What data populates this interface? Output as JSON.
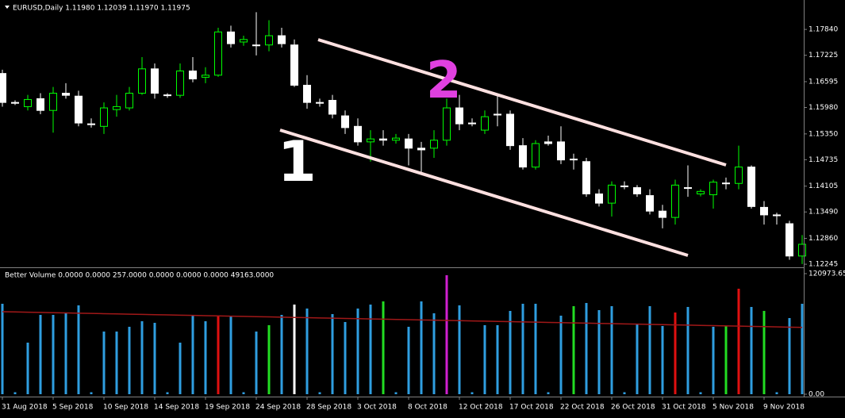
{
  "chart_data": [
    {
      "type": "candlestick",
      "title": "EURUSD,Daily  1.11980 1.12039 1.11970 1.11975",
      "categories": [
        "31 Aug 2018",
        null,
        null,
        null,
        "5 Sep 2018",
        null,
        null,
        null,
        "10 Sep 2018",
        null,
        null,
        null,
        "14 Sep 2018",
        null,
        null,
        null,
        "19 Sep 2018",
        null,
        null,
        null,
        "24 Sep 2018",
        null,
        null,
        null,
        "28 Sep 2018",
        null,
        null,
        null,
        "3 Oct 2018",
        null,
        null,
        null,
        "8 Oct 2018",
        null,
        null,
        null,
        "12 Oct 2018",
        null,
        null,
        null,
        "17 Oct 2018",
        null,
        null,
        null,
        "22 Oct 2018",
        null,
        null,
        null,
        "26 Oct 2018",
        null,
        null,
        null,
        "31 Oct 2018",
        null,
        null,
        null,
        "5 Nov 2018",
        null,
        null,
        null,
        "9 Nov 2018",
        null,
        null,
        null
      ],
      "open": [
        1.1679,
        1.161,
        1.16,
        1.1619,
        1.1591,
        1.1632,
        1.1625,
        1.1559,
        1.1553,
        1.1593,
        1.1597,
        1.1632,
        1.169,
        1.1628,
        1.1627,
        1.1685,
        1.167,
        1.1675,
        1.1778,
        1.1754,
        1.1747,
        1.1747,
        1.1769,
        1.1747,
        1.1651,
        1.161,
        1.1615,
        1.1578,
        1.1553,
        1.1516,
        1.1523,
        1.152,
        1.1523,
        1.1501,
        1.1501,
        1.152,
        1.1597,
        1.1561,
        1.1544,
        1.1582,
        1.1582,
        1.1507,
        1.1456,
        1.1516,
        1.1516,
        1.1475,
        1.1469,
        1.1392,
        1.137,
        1.1411,
        1.1407,
        1.1388,
        1.1351,
        1.1336,
        1.1407,
        1.1392,
        1.139,
        1.1418,
        1.1417,
        1.1456,
        1.136,
        1.1342,
        1.1321,
        1.1244
      ],
      "high": [
        1.1688,
        1.1615,
        1.1628,
        1.1632,
        1.1647,
        1.1656,
        1.1638,
        1.1572,
        1.161,
        1.1628,
        1.1647,
        1.1718,
        1.1703,
        1.1632,
        1.1703,
        1.1718,
        1.1694,
        1.1788,
        1.1793,
        1.1769,
        1.1825,
        1.1806,
        1.1788,
        1.176,
        1.1675,
        1.1619,
        1.1628,
        1.1591,
        1.1572,
        1.1544,
        1.1544,
        1.1535,
        1.1535,
        1.1516,
        1.1544,
        1.1619,
        1.1628,
        1.1572,
        1.1591,
        1.1628,
        1.1591,
        1.1525,
        1.152,
        1.1531,
        1.1553,
        1.1488,
        1.1478,
        1.1403,
        1.1422,
        1.1422,
        1.1413,
        1.1403,
        1.1366,
        1.1426,
        1.146,
        1.1403,
        1.1426,
        1.1431,
        1.1507,
        1.146,
        1.1375,
        1.1347,
        1.1328,
        1.1294
      ],
      "low": [
        1.16,
        1.1604,
        1.1591,
        1.1582,
        1.1538,
        1.1619,
        1.1553,
        1.155,
        1.1535,
        1.1576,
        1.1591,
        1.1628,
        1.1619,
        1.1621,
        1.1621,
        1.1658,
        1.1656,
        1.1671,
        1.1741,
        1.1745,
        1.1722,
        1.1732,
        1.1741,
        1.1647,
        1.1595,
        1.16,
        1.1572,
        1.1535,
        1.1507,
        1.1469,
        1.1507,
        1.1512,
        1.146,
        1.1441,
        1.1478,
        1.1507,
        1.1544,
        1.1553,
        1.1535,
        1.1553,
        1.1497,
        1.145,
        1.145,
        1.1507,
        1.1463,
        1.145,
        1.1385,
        1.1362,
        1.1338,
        1.1403,
        1.1385,
        1.1343,
        1.131,
        1.1319,
        1.1385,
        1.1386,
        1.1357,
        1.1403,
        1.1403,
        1.1357,
        1.1319,
        1.1319,
        1.1235,
        1.1225
      ],
      "close": [
        1.161,
        1.1608,
        1.1617,
        1.1591,
        1.1632,
        1.1627,
        1.1561,
        1.1557,
        1.1597,
        1.16,
        1.1632,
        1.169,
        1.1632,
        1.1627,
        1.1685,
        1.1666,
        1.1675,
        1.1778,
        1.175,
        1.176,
        1.1745,
        1.1769,
        1.175,
        1.1651,
        1.161,
        1.1608,
        1.1582,
        1.155,
        1.1516,
        1.1523,
        1.152,
        1.1525,
        1.1501,
        1.1497,
        1.152,
        1.1597,
        1.1559,
        1.1559,
        1.1576,
        1.158,
        1.1507,
        1.1456,
        1.1512,
        1.1512,
        1.1473,
        1.1473,
        1.1392,
        1.137,
        1.1413,
        1.1409,
        1.1392,
        1.1351,
        1.1336,
        1.1413,
        1.1405,
        1.1398,
        1.142,
        1.1417,
        1.1456,
        1.1362,
        1.1342,
        1.134,
        1.1244,
        1.1272
      ],
      "bull_color": "#00ff00",
      "bear_color": "#ffffff",
      "ylim": [
        1.1219,
        1.1839
      ],
      "yticks": [
        {
          "value": 1.1784,
          "label": "1.17840"
        },
        {
          "value": 1.17225,
          "label": "1.17225"
        },
        {
          "value": 1.16595,
          "label": "1.16595"
        },
        {
          "value": 1.1598,
          "label": "1.15980"
        },
        {
          "value": 1.1535,
          "label": "1.15350"
        },
        {
          "value": 1.14735,
          "label": "1.14735"
        },
        {
          "value": 1.14105,
          "label": "1.14105"
        },
        {
          "value": 1.1349,
          "label": "1.13490"
        },
        {
          "value": 1.1286,
          "label": "1.12860"
        },
        {
          "value": 1.12245,
          "label": "1.12245"
        }
      ],
      "annotations": [
        "1",
        "2"
      ]
    },
    {
      "type": "bar",
      "title": "Better Volume 0.0000 0.0000 257.0000 0.0000 0.0000 0.0000 49163.0000",
      "values": [
        90744,
        2000,
        51740,
        79600,
        79600,
        81192,
        89152,
        2000,
        62884,
        62884,
        67660,
        73232,
        71640,
        2000,
        51740,
        79600,
        73232,
        78804,
        78008,
        2000,
        62884,
        69252,
        79600,
        89948,
        85968,
        2000,
        80396,
        72436,
        85968,
        89948,
        93132,
        2000,
        67660,
        93132,
        81192,
        119400,
        89152,
        2000,
        69252,
        69252,
        83580,
        90744,
        90744,
        2000,
        78804,
        88356,
        91540,
        84376,
        88356,
        2000,
        70844,
        88356,
        68456,
        81988,
        87560,
        2000,
        67660,
        68456,
        105868,
        87560,
        83580,
        2000,
        76416,
        90744
      ],
      "colors": [
        "#2f9ee0",
        "#2f9ee0",
        "#2f9ee0",
        "#2f9ee0",
        "#2f9ee0",
        "#2f9ee0",
        "#2f9ee0",
        "#2f9ee0",
        "#2f9ee0",
        "#2f9ee0",
        "#2f9ee0",
        "#2f9ee0",
        "#2f9ee0",
        "#2f9ee0",
        "#2f9ee0",
        "#2f9ee0",
        "#2f9ee0",
        "#e01010",
        "#2f9ee0",
        "#2f9ee0",
        "#2f9ee0",
        "#22dd22",
        "#2f9ee0",
        "#ffffff",
        "#2f9ee0",
        "#2f9ee0",
        "#2f9ee0",
        "#2f9ee0",
        "#2f9ee0",
        "#2f9ee0",
        "#22dd22",
        "#2f9ee0",
        "#2f9ee0",
        "#2f9ee0",
        "#2f9ee0",
        "#d020d0",
        "#2f9ee0",
        "#2f9ee0",
        "#2f9ee0",
        "#2f9ee0",
        "#2f9ee0",
        "#2f9ee0",
        "#2f9ee0",
        "#2f9ee0",
        "#2f9ee0",
        "#22dd22",
        "#2f9ee0",
        "#2f9ee0",
        "#2f9ee0",
        "#2f9ee0",
        "#2f9ee0",
        "#2f9ee0",
        "#2f9ee0",
        "#e01010",
        "#2f9ee0",
        "#2f9ee0",
        "#2f9ee0",
        "#22dd22",
        "#e01010",
        "#2f9ee0",
        "#22dd22",
        "#2f9ee0",
        "#2f9ee0",
        "#2f9ee0"
      ],
      "line_values": [
        82800,
        82550,
        82300,
        82050,
        81800,
        81550,
        81300,
        81050,
        80800,
        80550,
        80300,
        80050,
        79800,
        79550,
        79300,
        79050,
        78800,
        78550,
        78300,
        78050,
        77800,
        77550,
        77300,
        77050,
        76800,
        76550,
        76300,
        76050,
        75800,
        75550,
        75300,
        75050,
        74800,
        74550,
        74300,
        74050,
        73800,
        73550,
        73300,
        73050,
        72800,
        72550,
        72300,
        72050,
        71800,
        71550,
        71300,
        71050,
        70800,
        70550,
        70300,
        70050,
        69800,
        69550,
        69300,
        69050,
        68800,
        68550,
        68300,
        68050,
        67800,
        67550,
        67300,
        67050
      ],
      "line_color": "#a01818",
      "ylim": [
        0,
        120973.65
      ],
      "yticks": [
        {
          "value": 0,
          "label": "0.00"
        },
        120973.65
      ]
    }
  ]
}
